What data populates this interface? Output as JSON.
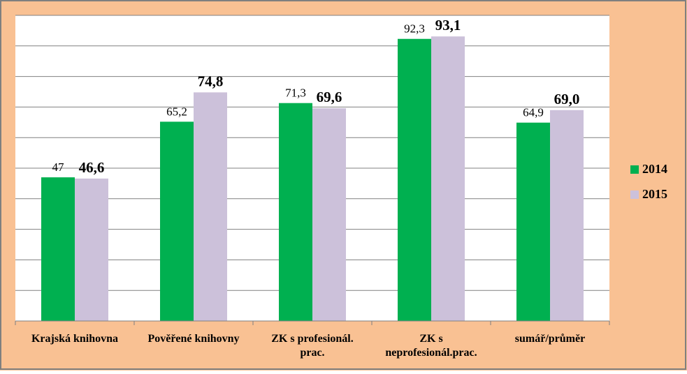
{
  "colors": {
    "background": "#F9C193",
    "plot_area": "#FFFFFF",
    "frame": "#7F7F7F",
    "gridline": "#808080",
    "series_2014": "#00B050",
    "series_2015": "#CCC1DA",
    "text": "#000000"
  },
  "chart_data": {
    "type": "bar",
    "categories": [
      [
        "Krajská knihovna"
      ],
      [
        "Pověřené knihovny"
      ],
      [
        "ZK s profesionál.",
        "prac."
      ],
      [
        "ZK s",
        "neprofesionál.prac."
      ],
      [
        "sumář/průměr"
      ]
    ],
    "series": [
      {
        "name": "2014",
        "values": [
          47,
          65.2,
          71.3,
          92.3,
          64.9
        ],
        "labels": [
          "47",
          "65,2",
          "71,3",
          "92,3",
          "64,9"
        ],
        "label_style": "normal"
      },
      {
        "name": "2015",
        "values": [
          46.6,
          74.8,
          69.6,
          93.1,
          69.0
        ],
        "labels": [
          "46,6",
          "74,8",
          "69,6",
          "93,1",
          "69,0"
        ],
        "label_style": "bold"
      }
    ],
    "ylim": [
      0,
      100
    ],
    "y_tick_step": 10,
    "y_tick_labels_shown": false,
    "grid": true,
    "legend_position": "right"
  }
}
